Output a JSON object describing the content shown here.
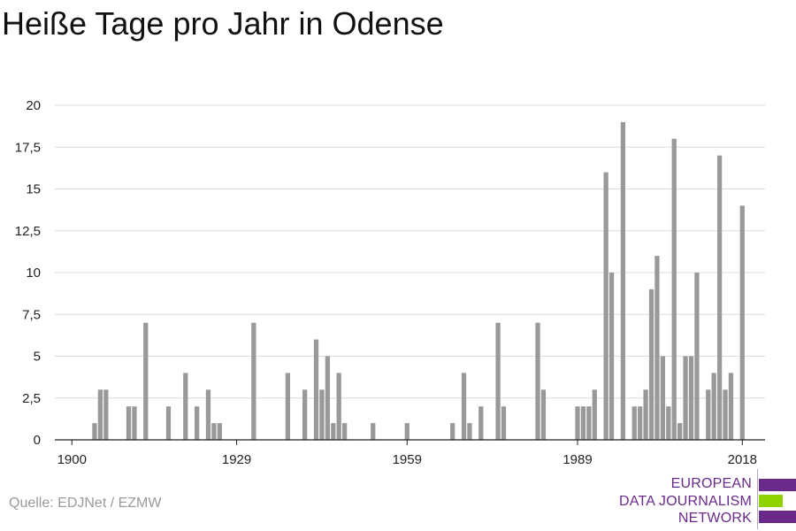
{
  "title": "Heiße Tage pro Jahr in Odense",
  "source": "Quelle: EDJNet / EZMW",
  "logo": {
    "lines": [
      "EUROPEAN",
      "DATA JOURNALISM",
      "NETWORK"
    ],
    "colors": {
      "purple": "#6a2a8a",
      "green": "#8fd400"
    }
  },
  "chart_data": {
    "type": "bar",
    "title": "Heiße Tage pro Jahr in Odense",
    "xlabel": "",
    "ylabel": "",
    "xlim": [
      1897,
      2022
    ],
    "ylim": [
      0,
      20
    ],
    "x_ticks": [
      1900,
      1929,
      1959,
      1989,
      2018
    ],
    "y_ticks": [
      0,
      2.5,
      5,
      7.5,
      10,
      12.5,
      15,
      17.5,
      20
    ],
    "y_tick_labels": [
      "0",
      "2,5",
      "5",
      "7,5",
      "10",
      "12,5",
      "15",
      "17,5",
      "20"
    ],
    "grid": true,
    "bar_color": "#999999",
    "points": [
      {
        "x": 1904,
        "y": 1
      },
      {
        "x": 1905,
        "y": 3
      },
      {
        "x": 1906,
        "y": 3
      },
      {
        "x": 1910,
        "y": 2
      },
      {
        "x": 1911,
        "y": 2
      },
      {
        "x": 1913,
        "y": 7
      },
      {
        "x": 1917,
        "y": 2
      },
      {
        "x": 1920,
        "y": 4
      },
      {
        "x": 1922,
        "y": 2
      },
      {
        "x": 1924,
        "y": 3
      },
      {
        "x": 1925,
        "y": 1
      },
      {
        "x": 1926,
        "y": 1
      },
      {
        "x": 1932,
        "y": 7
      },
      {
        "x": 1938,
        "y": 4
      },
      {
        "x": 1941,
        "y": 3
      },
      {
        "x": 1943,
        "y": 6
      },
      {
        "x": 1944,
        "y": 3
      },
      {
        "x": 1945,
        "y": 5
      },
      {
        "x": 1946,
        "y": 1
      },
      {
        "x": 1947,
        "y": 4
      },
      {
        "x": 1948,
        "y": 1
      },
      {
        "x": 1953,
        "y": 1
      },
      {
        "x": 1959,
        "y": 1
      },
      {
        "x": 1967,
        "y": 1
      },
      {
        "x": 1969,
        "y": 4
      },
      {
        "x": 1970,
        "y": 1
      },
      {
        "x": 1972,
        "y": 2
      },
      {
        "x": 1975,
        "y": 7
      },
      {
        "x": 1976,
        "y": 2
      },
      {
        "x": 1982,
        "y": 7
      },
      {
        "x": 1983,
        "y": 3
      },
      {
        "x": 1989,
        "y": 2
      },
      {
        "x": 1990,
        "y": 2
      },
      {
        "x": 1991,
        "y": 2
      },
      {
        "x": 1992,
        "y": 3
      },
      {
        "x": 1994,
        "y": 16
      },
      {
        "x": 1995,
        "y": 10
      },
      {
        "x": 1997,
        "y": 19
      },
      {
        "x": 1999,
        "y": 2
      },
      {
        "x": 2000,
        "y": 2
      },
      {
        "x": 2001,
        "y": 3
      },
      {
        "x": 2002,
        "y": 9
      },
      {
        "x": 2003,
        "y": 11
      },
      {
        "x": 2004,
        "y": 5
      },
      {
        "x": 2005,
        "y": 2
      },
      {
        "x": 2006,
        "y": 18
      },
      {
        "x": 2007,
        "y": 1
      },
      {
        "x": 2008,
        "y": 5
      },
      {
        "x": 2009,
        "y": 5
      },
      {
        "x": 2010,
        "y": 10
      },
      {
        "x": 2012,
        "y": 3
      },
      {
        "x": 2013,
        "y": 4
      },
      {
        "x": 2014,
        "y": 17
      },
      {
        "x": 2015,
        "y": 3
      },
      {
        "x": 2016,
        "y": 4
      },
      {
        "x": 2018,
        "y": 14
      }
    ]
  }
}
